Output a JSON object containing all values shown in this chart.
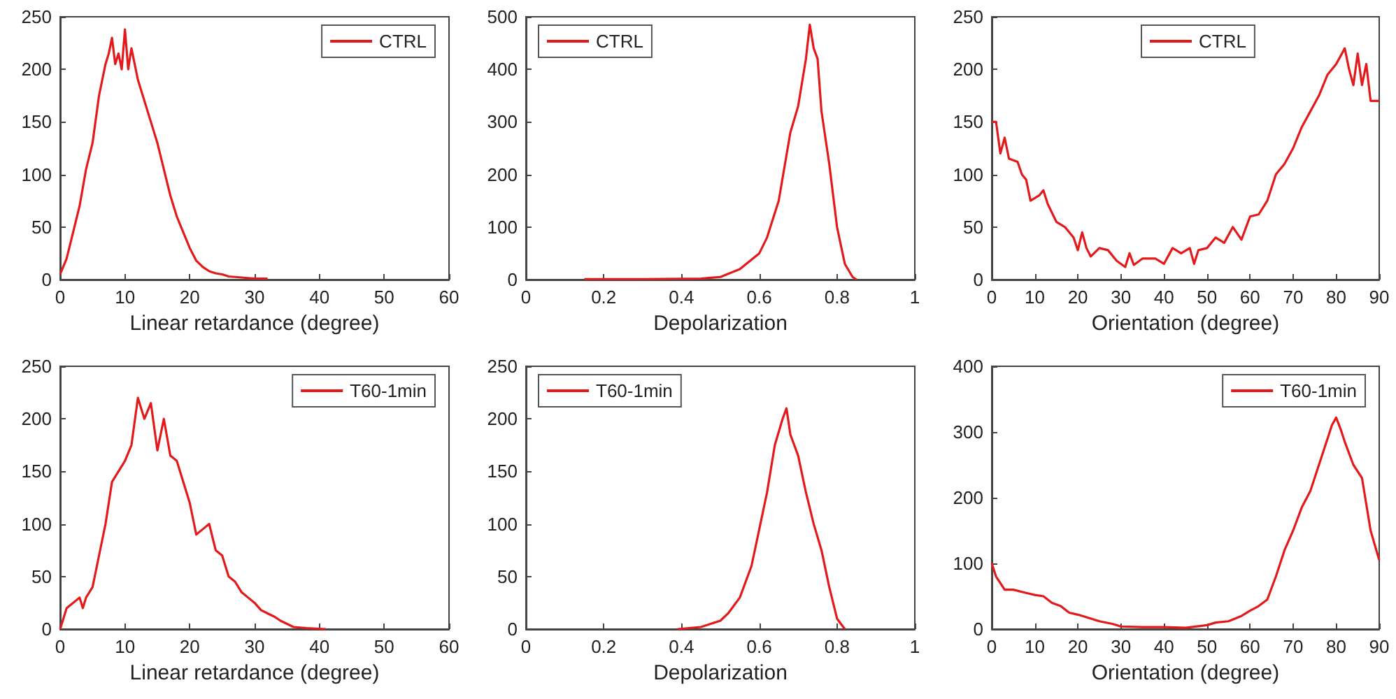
{
  "chart_data": [
    {
      "type": "line",
      "xlabel": "Linear retardance (degree)",
      "x": [
        0,
        1,
        2,
        3,
        4,
        5,
        6,
        7,
        7.5,
        8,
        8.5,
        9,
        9.5,
        10,
        10.5,
        11,
        12,
        13,
        14,
        15,
        16,
        17,
        18,
        19,
        20,
        21,
        22,
        23,
        24,
        25,
        26,
        28,
        30,
        32
      ],
      "series": [
        {
          "name": "CTRL",
          "color": "#e31a1c",
          "values": [
            5,
            20,
            45,
            70,
            105,
            130,
            175,
            205,
            215,
            230,
            205,
            215,
            200,
            238,
            200,
            220,
            190,
            170,
            150,
            130,
            105,
            80,
            60,
            45,
            30,
            18,
            12,
            8,
            6,
            5,
            3,
            2,
            1,
            1
          ]
        }
      ],
      "xlim": [
        0,
        60
      ],
      "xticks": [
        0,
        10,
        20,
        30,
        40,
        50,
        60
      ],
      "ylim": [
        0,
        250
      ],
      "yticks": [
        0,
        50,
        100,
        150,
        200,
        250
      ],
      "legend": "top right",
      "line_style": "solid",
      "grid": false
    },
    {
      "type": "line",
      "xlabel": "Depolarization",
      "x": [
        0.15,
        0.3,
        0.45,
        0.5,
        0.55,
        0.6,
        0.62,
        0.65,
        0.68,
        0.7,
        0.72,
        0.73,
        0.74,
        0.75,
        0.76,
        0.78,
        0.8,
        0.82,
        0.84,
        0.85
      ],
      "series": [
        {
          "name": "CTRL",
          "color": "#e31a1c",
          "values": [
            1,
            1,
            2,
            5,
            20,
            50,
            80,
            150,
            280,
            330,
            420,
            485,
            440,
            420,
            320,
            220,
            100,
            30,
            5,
            0
          ]
        }
      ],
      "xlim": [
        0,
        1
      ],
      "xticks": [
        0,
        0.2,
        0.4,
        0.6,
        0.8,
        1
      ],
      "ylim": [
        0,
        500
      ],
      "yticks": [
        0,
        100,
        200,
        300,
        400,
        500
      ],
      "legend": "top left",
      "line_style": "solid",
      "grid": false
    },
    {
      "type": "line",
      "xlabel": "Orientation (degree)",
      "x": [
        0,
        1,
        2,
        3,
        4,
        6,
        7,
        8,
        9,
        11,
        12,
        13,
        15,
        17,
        19,
        20,
        21,
        22,
        23,
        25,
        27,
        29,
        31,
        32,
        33,
        35,
        38,
        40,
        42,
        44,
        46,
        47,
        48,
        50,
        52,
        54,
        56,
        58,
        60,
        62,
        64,
        66,
        68,
        70,
        72,
        74,
        76,
        78,
        80,
        82,
        83,
        84,
        85,
        86,
        87,
        88,
        90
      ],
      "series": [
        {
          "name": "CTRL",
          "color": "#e31a1c",
          "values": [
            150,
            150,
            120,
            135,
            115,
            112,
            100,
            95,
            75,
            80,
            85,
            72,
            55,
            50,
            40,
            28,
            45,
            30,
            22,
            30,
            28,
            18,
            12,
            25,
            14,
            20,
            20,
            15,
            30,
            25,
            30,
            15,
            28,
            30,
            40,
            35,
            50,
            38,
            60,
            62,
            75,
            100,
            110,
            125,
            145,
            160,
            175,
            195,
            205,
            220,
            200,
            185,
            215,
            185,
            205,
            170,
            170
          ]
        }
      ],
      "xlim": [
        0,
        90
      ],
      "xticks": [
        0,
        10,
        20,
        30,
        40,
        50,
        60,
        70,
        80,
        90
      ],
      "ylim": [
        0,
        250
      ],
      "yticks": [
        0,
        50,
        100,
        150,
        200,
        250
      ],
      "legend": "top",
      "line_style": "solid",
      "grid": false
    },
    {
      "type": "line",
      "xlabel": "Linear retardance (degree)",
      "x": [
        0,
        1,
        2,
        3,
        3.5,
        4,
        5,
        6,
        7,
        8,
        9,
        10,
        11,
        12,
        13,
        14,
        15,
        16,
        17,
        18,
        19,
        20,
        21,
        22,
        23,
        24,
        25,
        26,
        27,
        28,
        29,
        30,
        31,
        32,
        33,
        34,
        35,
        36,
        38,
        41
      ],
      "series": [
        {
          "name": "T60-1min",
          "color": "#e31a1c",
          "values": [
            0,
            20,
            25,
            30,
            20,
            30,
            40,
            70,
            100,
            140,
            150,
            160,
            175,
            220,
            200,
            215,
            170,
            200,
            165,
            160,
            140,
            120,
            90,
            95,
            100,
            75,
            70,
            50,
            45,
            35,
            30,
            25,
            18,
            15,
            12,
            8,
            5,
            2,
            1,
            0
          ]
        }
      ],
      "xlim": [
        0,
        60
      ],
      "xticks": [
        0,
        10,
        20,
        30,
        40,
        50,
        60
      ],
      "ylim": [
        0,
        250
      ],
      "yticks": [
        0,
        50,
        100,
        150,
        200,
        250
      ],
      "legend": "top right",
      "line_style": "solid",
      "grid": false
    },
    {
      "type": "line",
      "xlabel": "Depolarization",
      "x": [
        0.39,
        0.45,
        0.5,
        0.52,
        0.55,
        0.58,
        0.6,
        0.62,
        0.64,
        0.66,
        0.67,
        0.68,
        0.7,
        0.72,
        0.74,
        0.76,
        0.78,
        0.8,
        0.82
      ],
      "series": [
        {
          "name": "T60-1min",
          "color": "#e31a1c",
          "values": [
            0,
            2,
            8,
            15,
            30,
            60,
            95,
            130,
            175,
            200,
            210,
            185,
            165,
            130,
            100,
            75,
            40,
            10,
            0
          ]
        }
      ],
      "xlim": [
        0,
        1
      ],
      "xticks": [
        0,
        0.2,
        0.4,
        0.6,
        0.8,
        1
      ],
      "ylim": [
        0,
        250
      ],
      "yticks": [
        0,
        50,
        100,
        150,
        200,
        250
      ],
      "legend": "top left",
      "line_style": "solid",
      "grid": false
    },
    {
      "type": "line",
      "xlabel": "Orientation (degree)",
      "x": [
        0,
        1,
        2,
        3,
        5,
        8,
        10,
        12,
        14,
        16,
        18,
        20,
        22,
        25,
        28,
        30,
        35,
        40,
        45,
        50,
        52,
        55,
        58,
        60,
        62,
        64,
        66,
        68,
        70,
        72,
        74,
        76,
        78,
        79,
        80,
        81,
        82,
        84,
        86,
        88,
        90
      ],
      "series": [
        {
          "name": "T60-1min",
          "color": "#e31a1c",
          "values": [
            100,
            80,
            70,
            60,
            60,
            55,
            52,
            50,
            40,
            35,
            25,
            22,
            18,
            12,
            8,
            4,
            3,
            3,
            2,
            6,
            10,
            12,
            20,
            28,
            35,
            45,
            80,
            120,
            150,
            185,
            210,
            250,
            290,
            310,
            322,
            305,
            285,
            250,
            230,
            150,
            105
          ]
        }
      ],
      "xlim": [
        0,
        90
      ],
      "xticks": [
        0,
        10,
        20,
        30,
        40,
        50,
        60,
        70,
        80,
        90
      ],
      "ylim": [
        0,
        400
      ],
      "yticks": [
        0,
        100,
        200,
        300,
        400
      ],
      "legend": "top right",
      "line_style": "solid",
      "grid": false
    }
  ]
}
